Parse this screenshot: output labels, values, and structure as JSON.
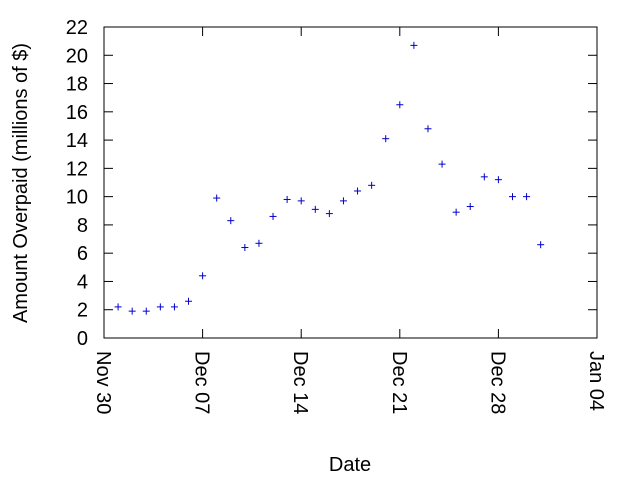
{
  "chart_data": {
    "type": "scatter",
    "xlabel": "Date",
    "ylabel": "Amount Overpaid (millions of $)",
    "xlim": [
      "Nov 30",
      "Jan 04"
    ],
    "ylim": [
      0,
      22
    ],
    "x_ticks": [
      "Nov 30",
      "Dec 07",
      "Dec 14",
      "Dec 21",
      "Dec 28",
      "Jan 04"
    ],
    "y_ticks": [
      0,
      2,
      4,
      6,
      8,
      10,
      12,
      14,
      16,
      18,
      20,
      22
    ],
    "grid": false,
    "marker": "+",
    "marker_color": "#0000cc",
    "series": [
      {
        "x": [
          "Dec 01",
          "Dec 02",
          "Dec 03",
          "Dec 04",
          "Dec 05",
          "Dec 06",
          "Dec 07",
          "Dec 08",
          "Dec 09",
          "Dec 10",
          "Dec 11",
          "Dec 12",
          "Dec 13",
          "Dec 14",
          "Dec 15",
          "Dec 16",
          "Dec 17",
          "Dec 18",
          "Dec 19",
          "Dec 20",
          "Dec 21",
          "Dec 22",
          "Dec 23",
          "Dec 24",
          "Dec 25",
          "Dec 26",
          "Dec 27",
          "Dec 28",
          "Dec 29",
          "Dec 30",
          "Dec 31"
        ],
        "y": [
          2.2,
          1.9,
          1.9,
          2.2,
          2.2,
          2.6,
          4.4,
          9.9,
          8.3,
          6.4,
          6.7,
          8.6,
          9.8,
          9.7,
          9.1,
          8.8,
          9.7,
          10.4,
          10.8,
          14.1,
          16.5,
          20.7,
          14.8,
          12.3,
          8.9,
          9.3,
          11.4,
          11.2,
          10.0,
          10.0,
          6.6
        ]
      }
    ]
  }
}
